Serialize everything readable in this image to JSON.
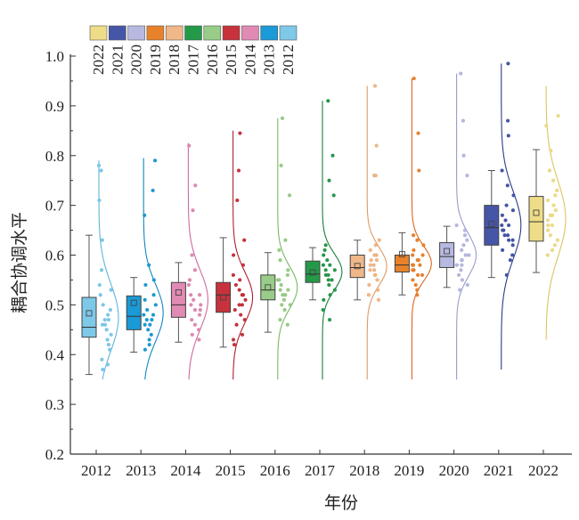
{
  "chart_data": {
    "type": "box",
    "xlabel": "年份",
    "ylabel": "耦合协调水平",
    "ylim": [
      0.2,
      1.0
    ],
    "yticks": [
      "0.2",
      "0.3",
      "0.4",
      "0.5",
      "0.6",
      "0.7",
      "0.8",
      "0.9",
      "1.0"
    ],
    "legend_position": "top-left",
    "legend_labels": [
      "2022",
      "2021",
      "2020",
      "2019",
      "2018",
      "2017",
      "2016",
      "2015",
      "2014",
      "2013",
      "2012"
    ],
    "categories": [
      "2012",
      "2013",
      "2014",
      "2015",
      "2016",
      "2017",
      "2018",
      "2019",
      "2020",
      "2021",
      "2022"
    ],
    "colors": [
      "#7ec8e8",
      "#1a9ad6",
      "#e08ab4",
      "#c8323c",
      "#99cc88",
      "#239a48",
      "#f0b888",
      "#e8822a",
      "#b7b9e0",
      "#4556a8",
      "#eedc88"
    ],
    "stroke_colors": [
      "#5fb5dc",
      "#1386c0",
      "#cc6b9d",
      "#b01e2c",
      "#77b866",
      "#1b7e3b",
      "#e09a60",
      "#d8681a",
      "#9a9ccc",
      "#2c3d8c",
      "#dcc460"
    ],
    "series": [
      {
        "name": "2012",
        "min": 0.36,
        "q1": 0.435,
        "median": 0.455,
        "q3": 0.515,
        "max": 0.64,
        "mean": 0.483,
        "range": [
          0.35,
          0.79
        ],
        "points": [
          0.78,
          0.77,
          0.71,
          0.63,
          0.57,
          0.54,
          0.53,
          0.52,
          0.5,
          0.49,
          0.48,
          0.47,
          0.47,
          0.46,
          0.46,
          0.45,
          0.44,
          0.43,
          0.42,
          0.41,
          0.39,
          0.38,
          0.37
        ]
      },
      {
        "name": "2013",
        "min": 0.405,
        "q1": 0.45,
        "median": 0.477,
        "q3": 0.518,
        "max": 0.555,
        "mean": 0.504,
        "range": [
          0.35,
          0.795
        ],
        "points": [
          0.79,
          0.73,
          0.68,
          0.58,
          0.55,
          0.54,
          0.52,
          0.51,
          0.5,
          0.49,
          0.48,
          0.48,
          0.47,
          0.47,
          0.46,
          0.46,
          0.45,
          0.44,
          0.43,
          0.42,
          0.41
        ]
      },
      {
        "name": "2014",
        "min": 0.425,
        "q1": 0.475,
        "median": 0.5,
        "q3": 0.545,
        "max": 0.585,
        "mean": 0.525,
        "range": [
          0.35,
          0.825
        ],
        "points": [
          0.82,
          0.74,
          0.69,
          0.6,
          0.57,
          0.55,
          0.54,
          0.52,
          0.52,
          0.51,
          0.5,
          0.5,
          0.49,
          0.49,
          0.48,
          0.47,
          0.46,
          0.45,
          0.44,
          0.43
        ]
      },
      {
        "name": "2015",
        "min": 0.415,
        "q1": 0.485,
        "median": 0.52,
        "q3": 0.545,
        "max": 0.635,
        "mean": 0.515,
        "range": [
          0.35,
          0.85
        ],
        "points": [
          0.845,
          0.77,
          0.71,
          0.63,
          0.6,
          0.58,
          0.56,
          0.55,
          0.54,
          0.53,
          0.52,
          0.52,
          0.51,
          0.5,
          0.5,
          0.49,
          0.48,
          0.47,
          0.46,
          0.44,
          0.43,
          0.42
        ]
      },
      {
        "name": "2016",
        "min": 0.445,
        "q1": 0.51,
        "median": 0.53,
        "q3": 0.56,
        "max": 0.605,
        "mean": 0.535,
        "range": [
          0.35,
          0.875
        ],
        "points": [
          0.875,
          0.78,
          0.72,
          0.63,
          0.61,
          0.59,
          0.57,
          0.56,
          0.55,
          0.55,
          0.54,
          0.53,
          0.53,
          0.52,
          0.52,
          0.51,
          0.5,
          0.5,
          0.49,
          0.47,
          0.46
        ]
      },
      {
        "name": "2017",
        "min": 0.51,
        "q1": 0.545,
        "median": 0.562,
        "q3": 0.588,
        "max": 0.615,
        "mean": 0.565,
        "range": [
          0.35,
          0.91
        ],
        "points": [
          0.91,
          0.8,
          0.75,
          0.72,
          0.62,
          0.61,
          0.6,
          0.59,
          0.58,
          0.58,
          0.57,
          0.57,
          0.56,
          0.56,
          0.55,
          0.55,
          0.54,
          0.53,
          0.52,
          0.51,
          0.49,
          0.47
        ]
      },
      {
        "name": "2018",
        "min": 0.51,
        "q1": 0.555,
        "median": 0.575,
        "q3": 0.6,
        "max": 0.63,
        "mean": 0.578,
        "range": [
          0.35,
          0.94
        ],
        "points": [
          0.94,
          0.82,
          0.76,
          0.76,
          0.63,
          0.62,
          0.61,
          0.6,
          0.6,
          0.59,
          0.59,
          0.58,
          0.58,
          0.57,
          0.57,
          0.56,
          0.56,
          0.55,
          0.54,
          0.53,
          0.52,
          0.51
        ]
      },
      {
        "name": "2019",
        "min": 0.52,
        "q1": 0.566,
        "median": 0.58,
        "q3": 0.6,
        "max": 0.645,
        "mean": 0.602,
        "range": [
          0.35,
          0.955
        ],
        "points": [
          0.955,
          0.845,
          0.77,
          0.64,
          0.63,
          0.62,
          0.61,
          0.6,
          0.6,
          0.59,
          0.59,
          0.58,
          0.58,
          0.58,
          0.57,
          0.57,
          0.56,
          0.56,
          0.55,
          0.54,
          0.53,
          0.52
        ]
      },
      {
        "name": "2020",
        "min": 0.535,
        "q1": 0.575,
        "median": 0.597,
        "q3": 0.625,
        "max": 0.658,
        "mean": 0.608,
        "range": [
          0.35,
          0.965
        ],
        "points": [
          0.965,
          0.87,
          0.8,
          0.76,
          0.66,
          0.65,
          0.64,
          0.63,
          0.62,
          0.61,
          0.6,
          0.6,
          0.59,
          0.59,
          0.58,
          0.58,
          0.57,
          0.56,
          0.55,
          0.54,
          0.53
        ]
      },
      {
        "name": "2021",
        "min": 0.555,
        "q1": 0.62,
        "median": 0.655,
        "q3": 0.7,
        "max": 0.77,
        "mean": 0.663,
        "range": [
          0.37,
          0.985
        ],
        "points": [
          0.985,
          0.87,
          0.84,
          0.77,
          0.74,
          0.72,
          0.7,
          0.69,
          0.68,
          0.67,
          0.66,
          0.66,
          0.65,
          0.65,
          0.64,
          0.64,
          0.63,
          0.63,
          0.62,
          0.61,
          0.6,
          0.59,
          0.56
        ]
      },
      {
        "name": "2022",
        "min": 0.565,
        "q1": 0.628,
        "median": 0.667,
        "q3": 0.718,
        "max": 0.812,
        "mean": 0.685,
        "range": [
          0.43,
          0.94
        ],
        "points": [
          0.88,
          0.86,
          0.81,
          0.77,
          0.75,
          0.73,
          0.72,
          0.71,
          0.7,
          0.69,
          0.68,
          0.68,
          0.67,
          0.66,
          0.66,
          0.65,
          0.64,
          0.63,
          0.62,
          0.61,
          0.6
        ]
      }
    ]
  }
}
